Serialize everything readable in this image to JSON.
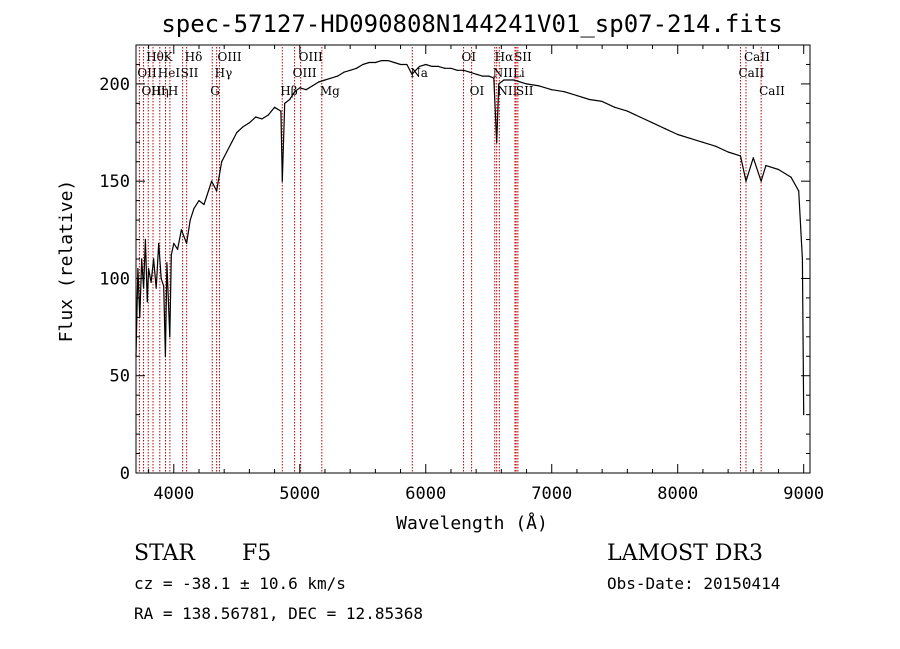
{
  "chart_data": {
    "type": "line",
    "title": "spec-57127-HD090808N144241V01_sp07-214.fits",
    "xlabel": "Wavelength (Å)",
    "ylabel": "Flux (relative)",
    "xlim": [
      3700,
      9050
    ],
    "ylim": [
      0,
      220
    ],
    "xticks": [
      4000,
      5000,
      6000,
      7000,
      8000,
      9000
    ],
    "yticks": [
      0,
      50,
      100,
      150,
      200
    ],
    "series": [
      {
        "name": "spectrum",
        "x": [
          3700,
          3715,
          3730,
          3745,
          3760,
          3775,
          3790,
          3800,
          3820,
          3840,
          3860,
          3880,
          3900,
          3920,
          3933,
          3945,
          3968,
          3980,
          4000,
          4030,
          4060,
          4102,
          4130,
          4160,
          4200,
          4240,
          4280,
          4300,
          4340,
          4380,
          4420,
          4460,
          4500,
          4550,
          4600,
          4650,
          4700,
          4750,
          4800,
          4850,
          4861,
          4880,
          4920,
          4960,
          5000,
          5050,
          5100,
          5150,
          5200,
          5250,
          5300,
          5350,
          5400,
          5450,
          5500,
          5550,
          5600,
          5650,
          5700,
          5750,
          5800,
          5850,
          5890,
          5950,
          6000,
          6050,
          6100,
          6150,
          6200,
          6250,
          6300,
          6350,
          6400,
          6450,
          6500,
          6540,
          6563,
          6580,
          6620,
          6700,
          6800,
          6900,
          7000,
          7100,
          7200,
          7300,
          7400,
          7500,
          7600,
          7700,
          7800,
          7900,
          8000,
          8100,
          8200,
          8300,
          8400,
          8498,
          8542,
          8600,
          8662,
          8700,
          8800,
          8900,
          8960,
          8990,
          9000
        ],
        "y": [
          60,
          105,
          80,
          110,
          95,
          120,
          88,
          105,
          98,
          110,
          95,
          118,
          100,
          96,
          60,
          108,
          70,
          112,
          118,
          115,
          125,
          118,
          130,
          136,
          140,
          138,
          146,
          150,
          145,
          160,
          165,
          170,
          175,
          178,
          180,
          183,
          182,
          184,
          188,
          186,
          150,
          190,
          192,
          196,
          198,
          197,
          199,
          201,
          202,
          203,
          204,
          206,
          207,
          208,
          210,
          211,
          211,
          212,
          212,
          211,
          210,
          210,
          205,
          209,
          210,
          209,
          209,
          208,
          208,
          207,
          207,
          206,
          205,
          204,
          204,
          203,
          170,
          200,
          202,
          202,
          200,
          199,
          197,
          196,
          194,
          192,
          191,
          188,
          186,
          183,
          180,
          177,
          174,
          172,
          170,
          168,
          165,
          163,
          150,
          162,
          150,
          158,
          156,
          152,
          145,
          110,
          30
        ]
      }
    ],
    "line_marks": [
      {
        "label": "Hθ",
        "x": 3797,
        "row": 1
      },
      {
        "label": "OII",
        "x": 3727,
        "row": 2
      },
      {
        "label": "OIII",
        "x": 3760,
        "row": 3
      },
      {
        "label": "K",
        "x": 3934,
        "row": 1
      },
      {
        "label": "HeI",
        "x": 3889,
        "row": 2
      },
      {
        "label": "Hη",
        "x": 3835,
        "row": 3
      },
      {
        "label": "Hδ",
        "x": 4102,
        "row": 1
      },
      {
        "label": "SII",
        "x": 4070,
        "row": 2
      },
      {
        "label": "H",
        "x": 3969,
        "row": 3
      },
      {
        "label": "OIII",
        "x": 4363,
        "row": 1
      },
      {
        "label": "Hγ",
        "x": 4340,
        "row": 2
      },
      {
        "label": "G",
        "x": 4305,
        "row": 3
      },
      {
        "label": "OIII",
        "x": 5007,
        "row": 1
      },
      {
        "label": "OIII",
        "x": 4959,
        "row": 2
      },
      {
        "label": "Hβ",
        "x": 4861,
        "row": 3
      },
      {
        "label": "Mg",
        "x": 5175,
        "row": 3
      },
      {
        "label": "Na",
        "x": 5893,
        "row": 2
      },
      {
        "label": "OI",
        "x": 6300,
        "row": 1
      },
      {
        "label": "OI",
        "x": 6364,
        "row": 3
      },
      {
        "label": "Hα",
        "x": 6563,
        "row": 1
      },
      {
        "label": "NII",
        "x": 6548,
        "row": 2
      },
      {
        "label": "SII",
        "x": 6717,
        "row": 1
      },
      {
        "label": "NII",
        "x": 6584,
        "row": 3
      },
      {
        "label": "Li",
        "x": 6708,
        "row": 2
      },
      {
        "label": "SII",
        "x": 6731,
        "row": 3
      },
      {
        "label": "CaII",
        "x": 8542,
        "row": 1
      },
      {
        "label": "CaII",
        "x": 8498,
        "row": 2
      },
      {
        "label": "CaII",
        "x": 8662,
        "row": 3
      }
    ]
  },
  "info": {
    "class": "STAR",
    "subclass": "F5",
    "cz": "cz = -38.1 ± 10.6 km/s",
    "radec": "RA = 138.56781, DEC =  12.85368",
    "survey": "LAMOST DR3",
    "obsdate": "Obs-Date: 20150414"
  },
  "colors": {
    "spectrum": "#000000",
    "marker": "#c00000",
    "axis": "#000000"
  }
}
